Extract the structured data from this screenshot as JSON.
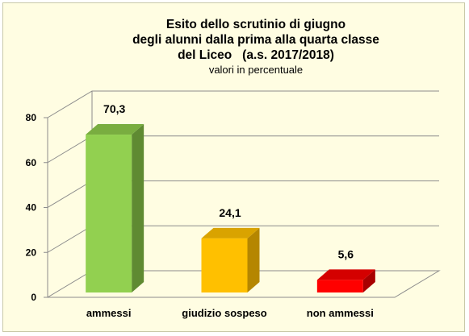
{
  "chart_data": {
    "type": "bar",
    "title_lines": [
      "Esito dello scrutinio di giugno",
      "degli alunni dalla prima alla quarta classe",
      "del Liceo   (a.s. 2017/2018)"
    ],
    "subtitle": "valori in percentuale",
    "categories": [
      "ammessi",
      "giudizio sospeso",
      "non ammessi"
    ],
    "values": [
      70.3,
      24.1,
      5.6
    ],
    "value_labels": [
      "70,3",
      "24,1",
      "5,6"
    ],
    "ylim": [
      0,
      80
    ],
    "yticks": [
      0,
      20,
      40,
      60,
      80
    ],
    "grid": true,
    "three_d": true,
    "colors": [
      {
        "front": "#92d050",
        "side": "#5f8a32",
        "top": "#79ad40"
      },
      {
        "front": "#ffc000",
        "side": "#b58600",
        "top": "#d9a300"
      },
      {
        "front": "#ff0000",
        "side": "#a80000",
        "top": "#d40000"
      }
    ]
  },
  "background_color": "#fffde2"
}
